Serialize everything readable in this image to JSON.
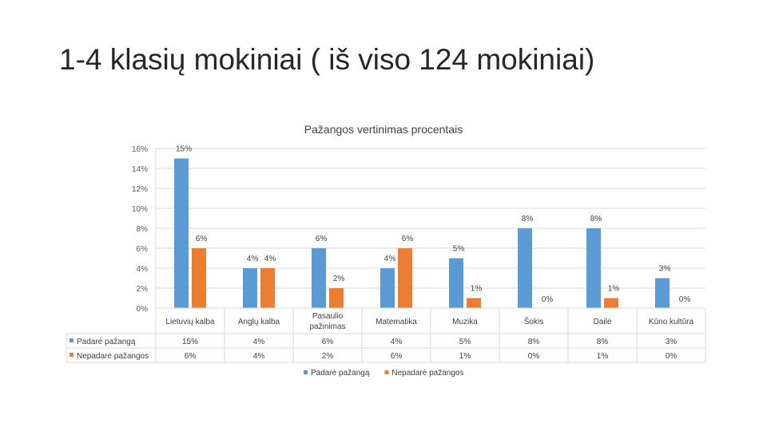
{
  "slide": {
    "title": "1-4 klasių mokiniai ( iš viso 124 mokiniai)"
  },
  "chart_data": {
    "type": "bar",
    "title": "Pažangos vertinimas procentais",
    "categories": [
      "Lietuvių kalba",
      "Anglų kalba",
      "Pasaulio pažinimas",
      "Matematika",
      "Muzika",
      "Šokis",
      "Dailė",
      "Kūno kultūra"
    ],
    "series": [
      {
        "name": "Padarė pažangą",
        "values": [
          15,
          4,
          6,
          4,
          5,
          8,
          8,
          3
        ],
        "labels": [
          "15%",
          "4%",
          "6%",
          "4%",
          "5%",
          "8%",
          "8%",
          "3%"
        ]
      },
      {
        "name": "Nepadarė pažangos",
        "values": [
          6,
          4,
          2,
          6,
          1,
          0,
          1,
          0
        ],
        "labels": [
          "6%",
          "4%",
          "2%",
          "6%",
          "1%",
          "0%",
          "1%",
          "0%"
        ]
      }
    ],
    "ylim": [
      0,
      16
    ],
    "yticks": [
      "0%",
      "2%",
      "4%",
      "6%",
      "8%",
      "10%",
      "12%",
      "14%",
      "16%"
    ],
    "grid": true,
    "legend": "bottom",
    "data_table": true,
    "colors": {
      "Padarė pažangą": "#5b9bd5",
      "Nepadarė pažangos": "#ed7d31"
    }
  }
}
